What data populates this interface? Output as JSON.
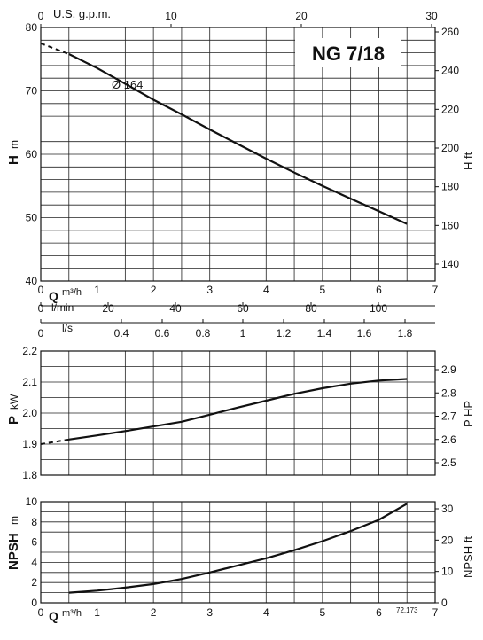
{
  "model_label": "NG 7/18",
  "impeller_label": "Ø 164",
  "code_label": "72.173",
  "units": {
    "usgpm": "U.S. g.p.m.",
    "lmin": "l/min",
    "ls": "l/s",
    "q_prefix": "Q",
    "q_unit": "m³/h",
    "h_prefix": "H",
    "h_unit": "m",
    "h_ft": "H ft",
    "p_prefix": "P",
    "p_unit": "kW",
    "p_hp": "P HP",
    "npsh_prefix": "NPSH",
    "npsh_unit": "m",
    "npsh_ft": "NPSH ft"
  },
  "chart_data": [
    {
      "type": "line",
      "id": "head",
      "x_unit": "m³/h",
      "y_unit": "m",
      "xlim": [
        0,
        7
      ],
      "ylim": [
        40,
        80
      ],
      "grid": true,
      "x_ticks": [
        "0",
        "1",
        "2",
        "3",
        "4",
        "5",
        "6",
        "7"
      ],
      "y_ticks": [
        "40",
        "50",
        "60",
        "70",
        "80"
      ],
      "right_axis": {
        "unit": "ft",
        "ticks": [
          "140",
          "160",
          "180",
          "200",
          "220",
          "240",
          "260"
        ]
      },
      "top_axis": {
        "unit": "U.S. g.p.m.",
        "ticks": [
          "0",
          "10",
          "20",
          "30"
        ]
      },
      "series": [
        {
          "name": "Ø 164",
          "x": [
            0.0,
            0.5,
            1.0,
            1.5,
            2.0,
            2.5,
            3.0,
            3.5,
            4.0,
            4.5,
            5.0,
            5.5,
            6.0,
            6.5
          ],
          "y": [
            77.5,
            75.8,
            73.6,
            71.1,
            68.6,
            66.3,
            63.9,
            61.6,
            59.3,
            57.1,
            55.0,
            53.0,
            51.0,
            49.0
          ]
        }
      ],
      "dashed_until_x": 0.5
    },
    {
      "type": "line",
      "id": "power",
      "x_unit": "m³/h",
      "y_unit": "kW",
      "xlim": [
        0,
        7
      ],
      "ylim": [
        1.8,
        2.2
      ],
      "grid": true,
      "y_ticks": [
        "1.8",
        "1.9",
        "2.0",
        "2.1",
        "2.2"
      ],
      "right_axis": {
        "unit": "HP",
        "ticks": [
          "2.5",
          "2.6",
          "2.7",
          "2.8",
          "2.9"
        ]
      },
      "scale_lmin": {
        "unit": "l/min",
        "ticks": [
          "0",
          "20",
          "40",
          "60",
          "80",
          "100"
        ]
      },
      "scale_ls": {
        "unit": "l/s",
        "ticks": [
          "0",
          "0.4",
          "0.6",
          "0.8",
          "1",
          "1.2",
          "1.4",
          "1.6",
          "1.8"
        ]
      },
      "series": [
        {
          "name": "",
          "x": [
            0.0,
            0.5,
            1.0,
            1.5,
            2.0,
            2.5,
            3.0,
            3.5,
            4.0,
            4.5,
            5.0,
            5.5,
            6.0,
            6.5
          ],
          "y": [
            1.9,
            1.915,
            1.928,
            1.942,
            1.957,
            1.972,
            1.995,
            2.018,
            2.04,
            2.062,
            2.08,
            2.095,
            2.105,
            2.11
          ]
        }
      ],
      "dashed_until_x": 0.5
    },
    {
      "type": "line",
      "id": "npsh",
      "x_unit": "m³/h",
      "y_unit": "m",
      "xlim": [
        0,
        7
      ],
      "ylim": [
        0,
        10
      ],
      "grid": true,
      "x_ticks": [
        "0",
        "1",
        "2",
        "3",
        "4",
        "5",
        "6",
        "7"
      ],
      "y_ticks": [
        "0",
        "2",
        "4",
        "6",
        "8",
        "10"
      ],
      "right_axis": {
        "unit": "ft",
        "ticks": [
          "0",
          "10",
          "20",
          "30"
        ]
      },
      "series": [
        {
          "name": "",
          "x": [
            0.5,
            1.0,
            1.5,
            2.0,
            2.5,
            3.0,
            3.5,
            4.0,
            4.5,
            5.0,
            5.5,
            6.0,
            6.5
          ],
          "y": [
            1.0,
            1.2,
            1.5,
            1.85,
            2.35,
            3.0,
            3.7,
            4.4,
            5.2,
            6.1,
            7.1,
            8.2,
            9.8
          ]
        }
      ]
    }
  ]
}
